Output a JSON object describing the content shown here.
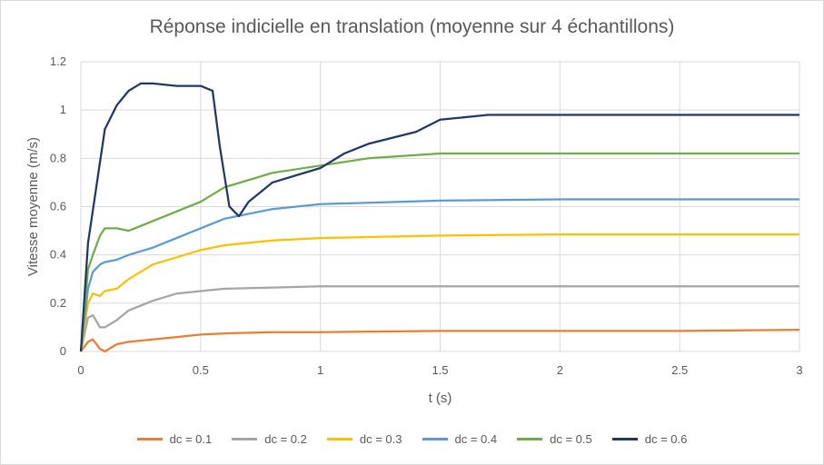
{
  "chart_data": {
    "type": "line",
    "title": "Réponse indicielle en translation (moyenne sur 4 échantillons)",
    "xlabel": "t (s)",
    "ylabel": "Vitesse moyenne (m/s)",
    "xlim": [
      0,
      3
    ],
    "ylim": [
      0,
      1.2
    ],
    "xticks": [
      0,
      0.5,
      1,
      1.5,
      2,
      2.5,
      3
    ],
    "xtick_labels": [
      "0",
      "0.5",
      "1",
      "1.5",
      "2",
      "2.5",
      "3"
    ],
    "yticks": [
      0,
      0.2,
      0.4,
      0.6,
      0.8,
      1,
      1.2
    ],
    "ytick_labels": [
      "0",
      "0.2",
      "0.4",
      "0.6",
      "0.8",
      "1",
      "1.2"
    ],
    "grid": "vertical and horizontal",
    "legend_position": "bottom",
    "series": [
      {
        "name": "dc = 0.1",
        "color": "#ED7D31",
        "x": [
          0,
          0.03,
          0.05,
          0.08,
          0.1,
          0.15,
          0.2,
          0.3,
          0.4,
          0.5,
          0.6,
          0.8,
          1,
          1.5,
          2,
          2.5,
          3
        ],
        "y": [
          0,
          0.04,
          0.05,
          0.01,
          0,
          0.03,
          0.04,
          0.05,
          0.06,
          0.07,
          0.075,
          0.08,
          0.08,
          0.085,
          0.085,
          0.085,
          0.09
        ]
      },
      {
        "name": "dc = 0.2",
        "color": "#A5A5A5",
        "x": [
          0,
          0.03,
          0.05,
          0.08,
          0.1,
          0.15,
          0.2,
          0.3,
          0.4,
          0.5,
          0.6,
          0.8,
          1,
          1.5,
          2,
          2.5,
          3
        ],
        "y": [
          0,
          0.14,
          0.15,
          0.1,
          0.1,
          0.13,
          0.17,
          0.21,
          0.24,
          0.25,
          0.26,
          0.265,
          0.27,
          0.27,
          0.27,
          0.27,
          0.27
        ]
      },
      {
        "name": "dc = 0.3",
        "color": "#FFC000",
        "x": [
          0,
          0.03,
          0.05,
          0.08,
          0.1,
          0.15,
          0.2,
          0.3,
          0.4,
          0.5,
          0.6,
          0.8,
          1,
          1.5,
          2,
          2.5,
          3
        ],
        "y": [
          0,
          0.2,
          0.24,
          0.23,
          0.25,
          0.26,
          0.3,
          0.36,
          0.39,
          0.42,
          0.44,
          0.46,
          0.47,
          0.48,
          0.485,
          0.485,
          0.485
        ]
      },
      {
        "name": "dc = 0.4",
        "color": "#5B9BD5",
        "x": [
          0,
          0.03,
          0.05,
          0.08,
          0.1,
          0.15,
          0.2,
          0.3,
          0.4,
          0.5,
          0.6,
          0.8,
          1,
          1.5,
          2,
          2.5,
          3
        ],
        "y": [
          0,
          0.26,
          0.33,
          0.36,
          0.37,
          0.38,
          0.4,
          0.43,
          0.47,
          0.51,
          0.55,
          0.59,
          0.61,
          0.625,
          0.63,
          0.63,
          0.63
        ]
      },
      {
        "name": "dc = 0.5",
        "color": "#70AD47",
        "x": [
          0,
          0.03,
          0.05,
          0.08,
          0.1,
          0.15,
          0.2,
          0.25,
          0.3,
          0.4,
          0.5,
          0.6,
          0.8,
          1,
          1.2,
          1.5,
          2,
          2.5,
          3
        ],
        "y": [
          0,
          0.34,
          0.4,
          0.48,
          0.51,
          0.51,
          0.5,
          0.52,
          0.54,
          0.58,
          0.62,
          0.68,
          0.74,
          0.77,
          0.8,
          0.82,
          0.82,
          0.82,
          0.82
        ]
      },
      {
        "name": "dc = 0.6",
        "color": "#203864",
        "x": [
          0,
          0.03,
          0.06,
          0.1,
          0.15,
          0.2,
          0.25,
          0.3,
          0.4,
          0.5,
          0.55,
          0.58,
          0.62,
          0.66,
          0.7,
          0.8,
          1,
          1.1,
          1.2,
          1.4,
          1.5,
          1.7,
          2,
          2.5,
          3
        ],
        "y": [
          0,
          0.45,
          0.65,
          0.92,
          1.02,
          1.08,
          1.11,
          1.11,
          1.1,
          1.1,
          1.08,
          0.85,
          0.6,
          0.56,
          0.62,
          0.7,
          0.76,
          0.82,
          0.86,
          0.91,
          0.96,
          0.98,
          0.98,
          0.98,
          0.98
        ]
      }
    ]
  }
}
